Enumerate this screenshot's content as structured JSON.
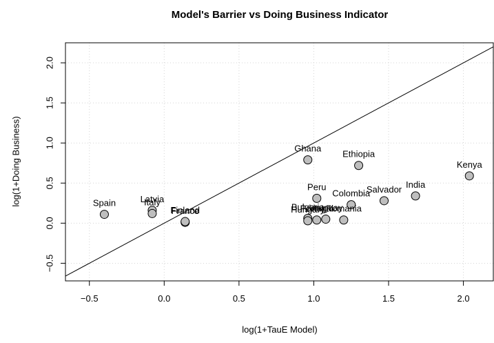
{
  "chart_data": {
    "type": "scatter",
    "title": "Model's Barrier vs Doing Business Indicator",
    "xlabel": "log(1+TauE Model)",
    "ylabel": "log(1+Doing Business)",
    "point_labels": [
      "Spain",
      "Latvia",
      "Italy",
      "France",
      "Finland",
      "Ghana",
      "Ethiopia",
      "Kenya",
      "Peru",
      "Bulgaria",
      "Colombia",
      "Salvador",
      "India",
      "Hungary",
      "Portugal",
      "Uruguay",
      "Romania"
    ],
    "x": [
      -0.4,
      -0.08,
      -0.08,
      0.14,
      0.14,
      0.96,
      1.3,
      2.04,
      1.02,
      0.96,
      1.25,
      1.47,
      1.68,
      0.96,
      1.02,
      1.08,
      1.2
    ],
    "values": [
      0.11,
      0.16,
      0.12,
      0.01,
      0.02,
      0.79,
      0.72,
      0.59,
      0.31,
      0.06,
      0.23,
      0.28,
      0.34,
      0.03,
      0.04,
      0.05,
      0.04
    ],
    "color": "#bebebe",
    "xlim": [
      -0.66,
      2.2
    ],
    "ylim": [
      -0.72,
      2.25
    ],
    "xticks": [
      {
        "value": -0.5,
        "label": "−0.5"
      },
      {
        "value": 0,
        "label": "0.0"
      },
      0.5,
      {
        "value": 1,
        "label": "1.0"
      },
      1.5,
      {
        "value": 2,
        "label": "2.0"
      }
    ],
    "yticks": [
      {
        "value": -0.5,
        "label": "−0.5"
      },
      {
        "value": 0,
        "label": "0.0"
      },
      0.5,
      {
        "value": 1,
        "label": "1.0"
      },
      1.5,
      {
        "value": 2,
        "label": "2.0"
      }
    ],
    "grid": true
  }
}
